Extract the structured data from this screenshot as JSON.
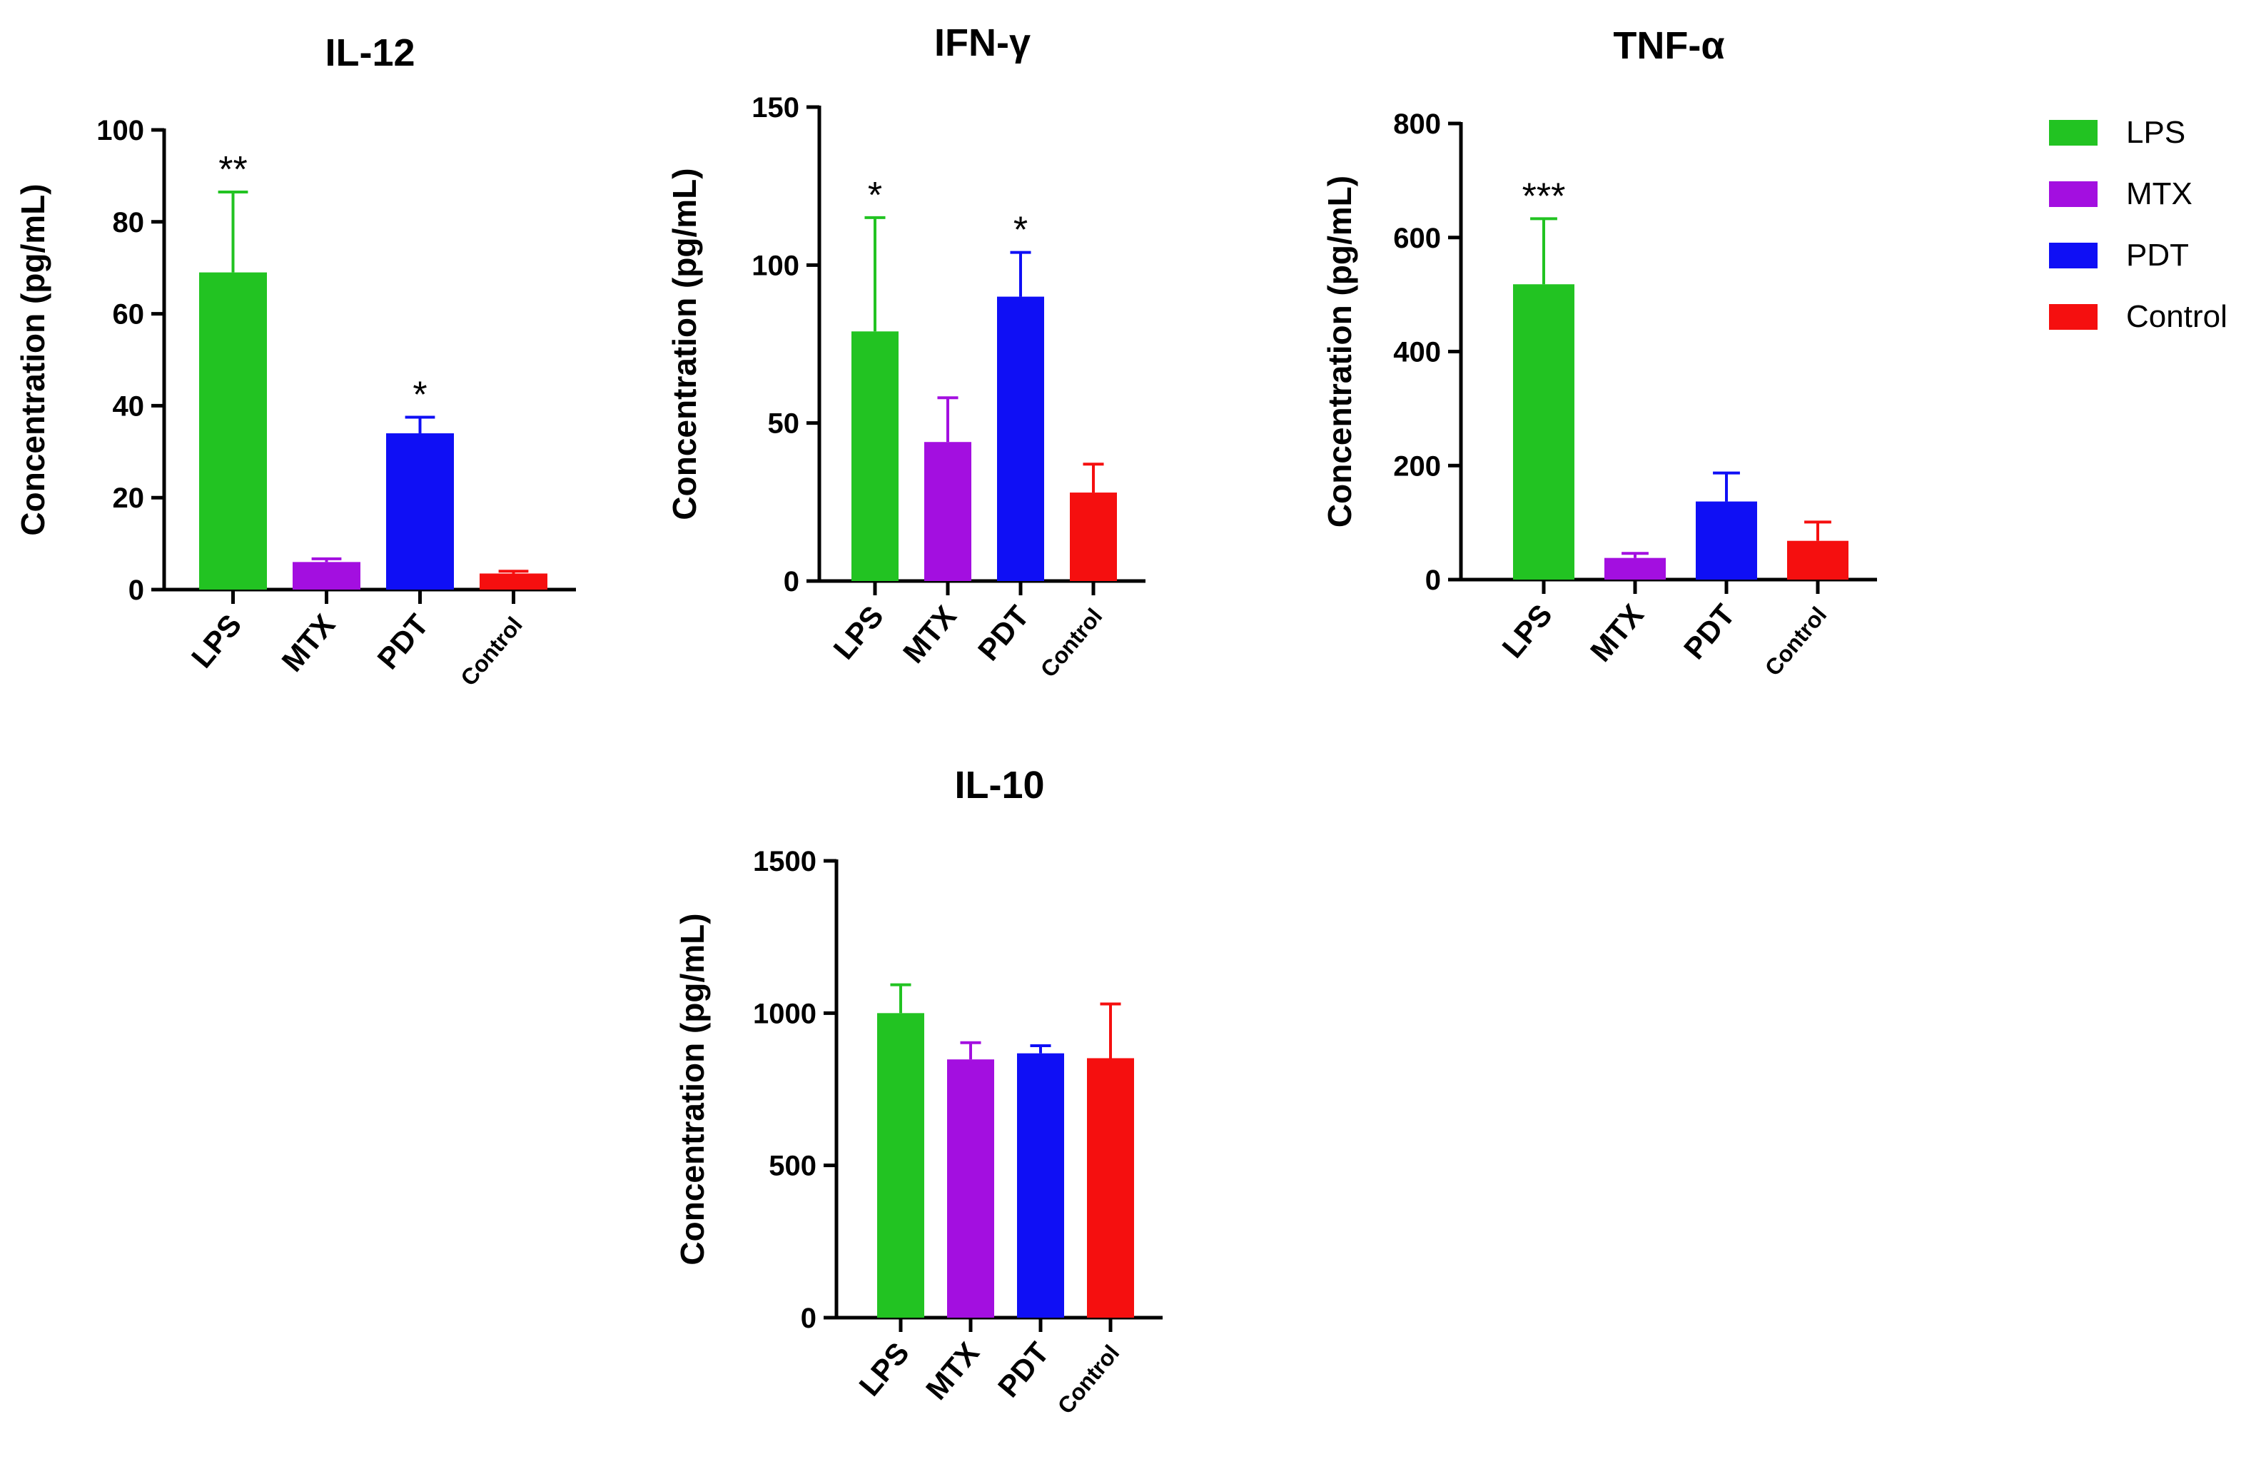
{
  "colors": {
    "LPS": "#22c322",
    "MTX": "#a30fe0",
    "PDT": "#0f0ff5",
    "Control": "#f50f0f"
  },
  "legend": {
    "items": [
      {
        "label": "LPS",
        "color": "#22c322"
      },
      {
        "label": "MTX",
        "color": "#a30fe0"
      },
      {
        "label": "PDT",
        "color": "#0f0ff5"
      },
      {
        "label": "Control",
        "color": "#f50f0f"
      }
    ]
  },
  "chart_data": [
    {
      "type": "bar",
      "title": "IL-12",
      "ylabel": "Concentration (pg/mL)",
      "xlabel": "",
      "categories": [
        "LPS",
        "MTX",
        "PDT",
        "Control"
      ],
      "values": [
        69,
        6,
        34,
        3.5
      ],
      "errors": [
        17.5,
        0.7,
        3.5,
        0.5
      ],
      "significance": [
        "**",
        "",
        "*",
        ""
      ],
      "ylim": [
        0,
        100
      ],
      "yticks": [
        0,
        20,
        40,
        60,
        80,
        100
      ]
    },
    {
      "type": "bar",
      "title": "IFN-γ",
      "ylabel": "Concentration (pg/mL)",
      "xlabel": "",
      "categories": [
        "LPS",
        "MTX",
        "PDT",
        "Control"
      ],
      "values": [
        79,
        44,
        90,
        28
      ],
      "errors": [
        36,
        14,
        14,
        9
      ],
      "significance": [
        "*",
        "",
        "*",
        ""
      ],
      "ylim": [
        0,
        150
      ],
      "yticks": [
        0,
        50,
        100,
        150
      ]
    },
    {
      "type": "bar",
      "title": "TNF-α",
      "ylabel": "Concentration (pg/mL)",
      "xlabel": "",
      "categories": [
        "LPS",
        "MTX",
        "PDT",
        "Control"
      ],
      "values": [
        518,
        38,
        137,
        68
      ],
      "errors": [
        115,
        8,
        50,
        33
      ],
      "significance": [
        "***",
        "",
        "",
        ""
      ],
      "ylim": [
        0,
        800
      ],
      "yticks": [
        0,
        200,
        400,
        600,
        800
      ]
    },
    {
      "type": "bar",
      "title": "IL-10",
      "ylabel": "Concentration (pg/mL)",
      "xlabel": "",
      "categories": [
        "LPS",
        "MTX",
        "PDT",
        "Control"
      ],
      "values": [
        1000,
        848,
        868,
        852
      ],
      "errors": [
        93,
        55,
        25,
        178
      ],
      "significance": [
        "",
        "",
        "",
        ""
      ],
      "ylim": [
        0,
        1500
      ],
      "yticks": [
        0,
        500,
        1000,
        1500
      ]
    }
  ]
}
